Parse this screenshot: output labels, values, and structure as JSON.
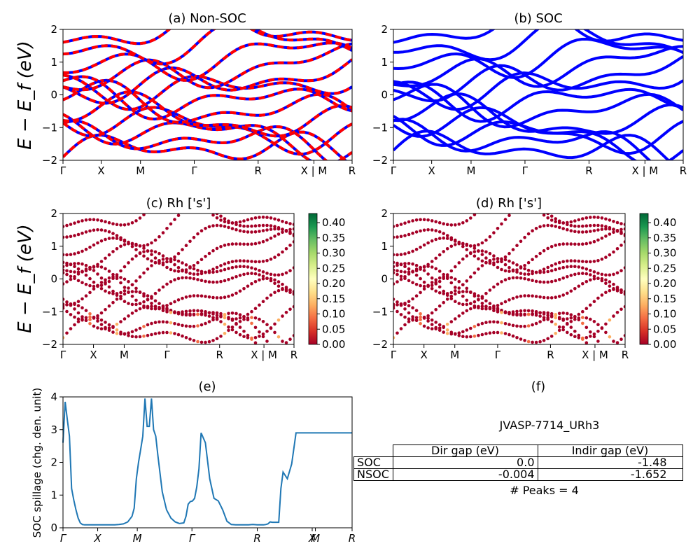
{
  "chart_data": [
    {
      "id": "a",
      "type": "line",
      "title": "(a) Non-SOC",
      "ylabel": "E − E_f (eV)",
      "ylim": [
        -2,
        2
      ],
      "yticks": [
        "2",
        "1",
        "0",
        "−1",
        "−2"
      ],
      "kpath_labels": [
        "Γ",
        "X",
        "M",
        "Γ",
        "R",
        "X | M",
        "R"
      ],
      "series_colors": [
        "#ff0000",
        "#0000ff"
      ],
      "note": "Band structure lines: red spin-up dashed over blue spin-down"
    },
    {
      "id": "b",
      "type": "line",
      "title": "(b) SOC",
      "ylim": [
        -2,
        2
      ],
      "yticks": [
        "2",
        "1",
        "0",
        "−1",
        "−2"
      ],
      "kpath_labels": [
        "Γ",
        "X",
        "M",
        "Γ",
        "R",
        "X | M",
        "R"
      ],
      "series_colors": [
        "#0000ff"
      ]
    },
    {
      "id": "c",
      "type": "scatter",
      "title": "(c)  Rh ['s']",
      "ylabel": "E − E_f (eV)",
      "ylim": [
        -2,
        2
      ],
      "yticks": [
        "2",
        "1",
        "0",
        "−1",
        "−2"
      ],
      "kpath_labels": [
        "Γ",
        "X",
        "M",
        "Γ",
        "R",
        "X | M",
        "R"
      ],
      "colorbar": {
        "ticks": [
          "0.40",
          "0.35",
          "0.30",
          "0.25",
          "0.20",
          "0.15",
          "0.10",
          "0.05",
          "0.00"
        ],
        "range": [
          0,
          0.43
        ]
      }
    },
    {
      "id": "d",
      "type": "scatter",
      "title": "(d) Rh ['s']",
      "ylim": [
        -2,
        2
      ],
      "yticks": [
        "2",
        "1",
        "0",
        "−1",
        "−2"
      ],
      "kpath_labels": [
        "Γ",
        "X",
        "M",
        "Γ",
        "R",
        "X | M",
        "R"
      ],
      "colorbar": {
        "ticks": [
          "0.40",
          "0.35",
          "0.30",
          "0.25",
          "0.20",
          "0.15",
          "0.10",
          "0.05",
          "0.00"
        ],
        "range": [
          0,
          0.43
        ]
      }
    },
    {
      "id": "e",
      "type": "line",
      "title": "(e)",
      "ylabel": "SOC spillage (chg. den. unit)",
      "ylim": [
        0,
        4
      ],
      "yticks": [
        "4",
        "3",
        "2",
        "1",
        "0"
      ],
      "kpath_labels": [
        "Γ",
        "X",
        "M",
        "Γ",
        "R",
        "X",
        "M",
        "R"
      ],
      "color": "#1f77b4",
      "x": [
        0,
        0.5,
        1,
        1.5,
        2,
        2.5,
        3,
        3.5,
        4,
        4.5,
        5,
        5.5,
        6,
        7,
        8,
        9,
        10,
        11,
        12,
        13,
        14,
        15,
        16,
        16.5,
        17,
        17.5,
        18,
        18.5,
        19,
        19.5,
        20,
        20.5,
        21,
        21.5,
        22,
        23,
        24,
        25,
        26,
        27,
        28,
        28.5,
        29,
        29.5,
        30,
        30.5,
        31,
        31.5,
        32,
        33,
        34,
        35,
        36,
        37,
        38,
        39,
        40,
        41,
        42,
        43,
        44,
        45,
        46,
        46.5,
        47,
        47.5,
        48,
        48.5,
        49,
        49.5,
        50,
        50.5,
        51,
        52,
        53,
        54,
        55,
        56,
        57,
        58,
        59,
        60,
        61,
        62,
        63,
        63.5,
        64,
        64.5,
        65,
        65.5,
        66,
        66.5,
        67
      ],
      "values": [
        2.6,
        3.85,
        3.3,
        2.8,
        1.2,
        0.85,
        0.55,
        0.3,
        0.15,
        0.1,
        0.09,
        0.09,
        0.09,
        0.09,
        0.09,
        0.09,
        0.09,
        0.09,
        0.09,
        0.1,
        0.12,
        0.18,
        0.35,
        0.6,
        1.5,
        2.0,
        2.4,
        2.8,
        3.95,
        3.1,
        3.1,
        3.95,
        3.0,
        2.8,
        2.2,
        1.1,
        0.55,
        0.3,
        0.18,
        0.13,
        0.15,
        0.35,
        0.72,
        0.8,
        0.82,
        0.9,
        1.25,
        1.8,
        2.9,
        2.6,
        1.5,
        0.9,
        0.82,
        0.55,
        0.2,
        0.1,
        0.09,
        0.09,
        0.09,
        0.09,
        0.1,
        0.09,
        0.09,
        0.09,
        0.1,
        0.12,
        0.18,
        0.17,
        0.17,
        0.17,
        0.17,
        1.2,
        1.7,
        1.5,
        1.95,
        2.9,
        2.9,
        2.9,
        2.9,
        2.9,
        2.9,
        2.9,
        2.9,
        2.9,
        2.9,
        2.9,
        2.9,
        2.9,
        2.9,
        2.9,
        2.9,
        2.9,
        2.9
      ]
    }
  ],
  "panel_f": {
    "title": "(f)",
    "material": "JVASP-7714_URh3",
    "headers": [
      "Dir gap (eV)",
      "Indir gap (eV)"
    ],
    "rows": [
      {
        "label": "SOC",
        "dir": "0.0",
        "indir": "-1.48"
      },
      {
        "label": "NSOC",
        "dir": "-0.004",
        "indir": "-1.652"
      }
    ],
    "peaks": "# Peaks = 4"
  }
}
